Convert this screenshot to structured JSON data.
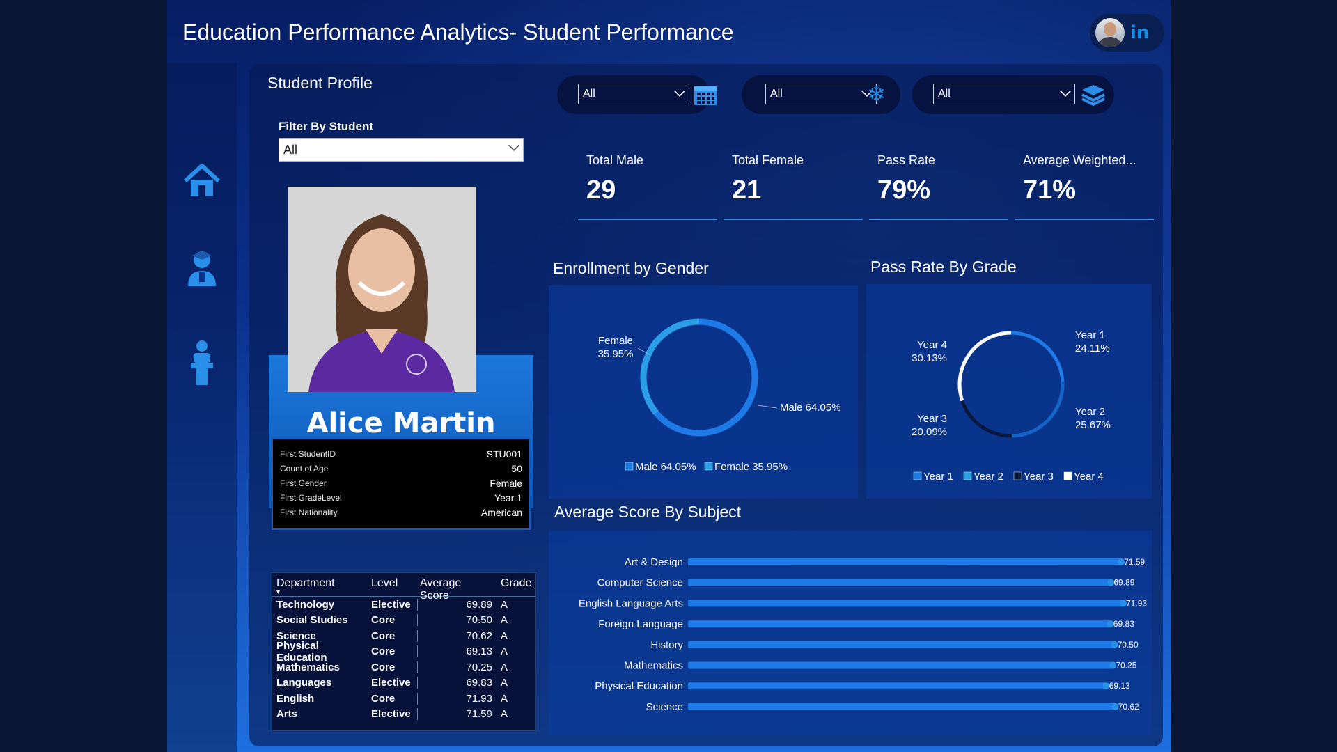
{
  "app_title": "Education Performance Analytics- Student Performance",
  "header": {
    "social_icon": "linkedin-icon"
  },
  "nav": {
    "items": [
      {
        "icon": "home-icon"
      },
      {
        "icon": "student-icon"
      },
      {
        "icon": "teacher-icon"
      }
    ]
  },
  "student_profile": {
    "title": "Student Profile",
    "filter_label": "Filter By Student",
    "filter_value": "All",
    "name": "Alice Martin",
    "info": [
      {
        "key": "First StudentID",
        "value": "STU001"
      },
      {
        "key": "Count of Age",
        "value": "50"
      },
      {
        "key": "First Gender",
        "value": "Female"
      },
      {
        "key": "First GradeLevel",
        "value": "Year 1"
      },
      {
        "key": "First Nationality",
        "value": "American"
      }
    ]
  },
  "dept_table": {
    "headers": [
      "Department",
      "Level",
      "Average Score",
      "Grade"
    ],
    "rows": [
      {
        "department": "Technology",
        "level": "Elective",
        "score": "69.89",
        "grade": "A"
      },
      {
        "department": "Social Studies",
        "level": "Core",
        "score": "70.50",
        "grade": "A"
      },
      {
        "department": "Science",
        "level": "Core",
        "score": "70.62",
        "grade": "A"
      },
      {
        "department": "Physical Education",
        "level": "Core",
        "score": "69.13",
        "grade": "A"
      },
      {
        "department": "Mathematics",
        "level": "Core",
        "score": "70.25",
        "grade": "A"
      },
      {
        "department": "Languages",
        "level": "Elective",
        "score": "69.83",
        "grade": "A"
      },
      {
        "department": "English",
        "level": "Core",
        "score": "71.93",
        "grade": "A"
      },
      {
        "department": "Arts",
        "level": "Elective",
        "score": "71.59",
        "grade": "A"
      }
    ]
  },
  "slicers": [
    {
      "value": "All",
      "icon": "calendar-icon"
    },
    {
      "value": "All",
      "icon": "snowflake-icon"
    },
    {
      "value": "All",
      "icon": "layers-icon"
    }
  ],
  "kpis": [
    {
      "label": "Total Male",
      "value": "29"
    },
    {
      "label": "Total Female",
      "value": "21"
    },
    {
      "label": "Pass Rate",
      "value": "79%"
    },
    {
      "label": "Average Weighted...",
      "value": "71%"
    }
  ],
  "chart_data": [
    {
      "type": "pie",
      "title": "Enrollment by Gender",
      "slices": [
        {
          "label": "Male",
          "value": 64.05,
          "display": "Male 64.05%",
          "color": "#1e7ae6"
        },
        {
          "label": "Female",
          "value": 35.95,
          "display": "Female 35.95%",
          "color": "#2b9ee8"
        }
      ],
      "legend": [
        {
          "label": "Male 64.05%",
          "color": "#1e7ae6"
        },
        {
          "label": "Female 35.95%",
          "color": "#2b9ee8"
        }
      ]
    },
    {
      "type": "pie",
      "title": "Pass Rate By Grade",
      "slices": [
        {
          "label": "Year 1",
          "value": 24.11,
          "pct": "24.11%",
          "color": "#1e7ae6"
        },
        {
          "label": "Year 2",
          "value": 25.67,
          "pct": "25.67%",
          "color": "#1565c8"
        },
        {
          "label": "Year 3",
          "value": 20.09,
          "pct": "20.09%",
          "color": "#0a1840"
        },
        {
          "label": "Year 4",
          "value": 30.13,
          "pct": "30.13%",
          "color": "#ffffff"
        }
      ],
      "legend": [
        {
          "label": "Year 1",
          "color": "#1e7ae6"
        },
        {
          "label": "Year 2",
          "color": "#2aa0e8"
        },
        {
          "label": "Year 3",
          "color": "#0a1840"
        },
        {
          "label": "Year 4",
          "color": "#ffffff"
        }
      ]
    },
    {
      "type": "bar",
      "title": "Average Score By Subject",
      "categories": [
        "Art & Design",
        "Computer Science",
        "English Language Arts",
        "Foreign Language",
        "History",
        "Mathematics",
        "Physical Education",
        "Science"
      ],
      "values": [
        71.59,
        69.89,
        71.93,
        69.83,
        70.5,
        70.25,
        69.13,
        70.62
      ],
      "labels": [
        "71.59",
        "69.89",
        "71.93",
        "69.83",
        "70.50",
        "70.25",
        "69.13",
        "70.62"
      ],
      "color": "#1e7ae6"
    }
  ]
}
